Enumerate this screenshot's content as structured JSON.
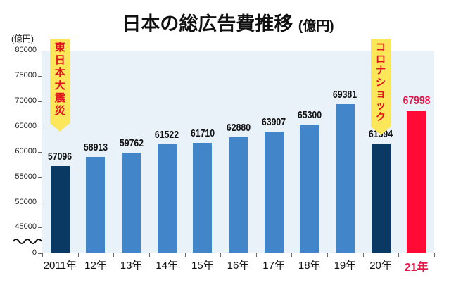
{
  "title": "日本の総広告費推移",
  "title_unit": "(億円)",
  "y_unit": "(億円)",
  "colors": {
    "plot_bg": "#e9f1f9",
    "bar_default": "#4285c8",
    "bar_highlight_dark": "#0a3a63",
    "bar_latest": "#ff0a37",
    "latest_label": "#e3194b",
    "banner_bg": "#fce65a",
    "banner_text": "#e3101d"
  },
  "annotations": [
    {
      "text": "東日本大震災",
      "target": "2011年"
    },
    {
      "text": "コロナショック",
      "target": "20年"
    }
  ],
  "chart_data": {
    "type": "bar",
    "title": "日本の総広告費推移 (億円)",
    "xlabel": "",
    "ylabel": "(億円)",
    "categories": [
      "2011年",
      "12年",
      "13年",
      "14年",
      "15年",
      "16年",
      "17年",
      "18年",
      "19年",
      "20年",
      "21年"
    ],
    "values": [
      57096,
      58913,
      59762,
      61522,
      61710,
      62880,
      63907,
      65300,
      69381,
      61594,
      67998
    ],
    "bar_colors": [
      "#0a3a63",
      "#4285c8",
      "#4285c8",
      "#4285c8",
      "#4285c8",
      "#4285c8",
      "#4285c8",
      "#4285c8",
      "#4285c8",
      "#0a3a63",
      "#ff0a37"
    ],
    "y_ticks": [
      0,
      45000,
      50000,
      55000,
      60000,
      65000,
      70000,
      75000,
      80000
    ],
    "ylim": [
      0,
      80000
    ],
    "axis_break": "between 0 and 45000",
    "grid": false,
    "legend": null,
    "annotations": [
      {
        "text": "東日本大震災",
        "category": "2011年"
      },
      {
        "text": "コロナショック",
        "category": "20年"
      }
    ]
  }
}
